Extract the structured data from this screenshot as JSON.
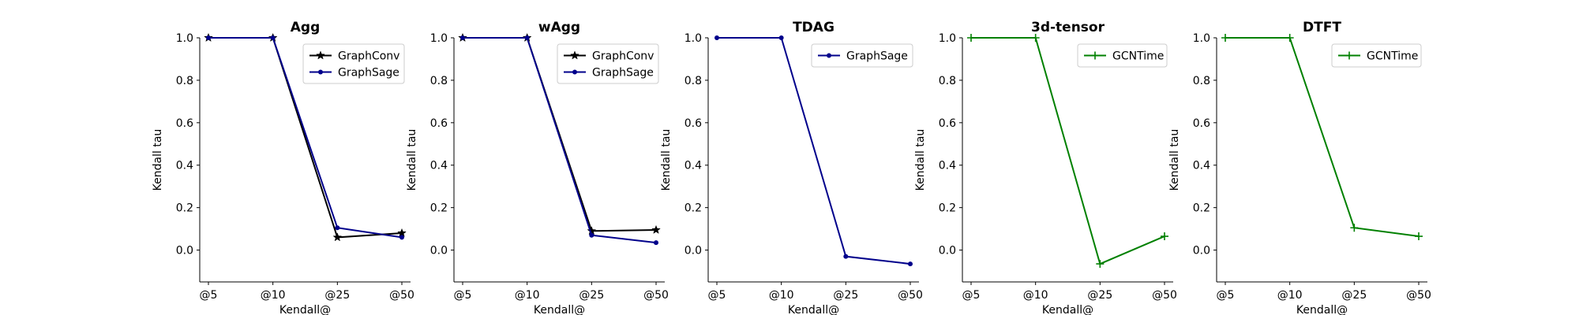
{
  "chart_data": [
    {
      "type": "line",
      "title": "Agg",
      "xlabel": "Kendall@",
      "ylabel": "Kendall tau",
      "categories": [
        "@5",
        "@10",
        "@25",
        "@50"
      ],
      "ylim": [
        -0.15,
        1.0
      ],
      "yticks": [
        "0.0",
        "0.2",
        "0.4",
        "0.6",
        "0.8",
        "1.0"
      ],
      "legend_position": "top-right",
      "grid": false,
      "series": [
        {
          "name": "GraphConv",
          "values": [
            1.0,
            1.0,
            0.06,
            0.08
          ],
          "color": "#000000",
          "marker": "star"
        },
        {
          "name": "GraphSage",
          "values": [
            1.0,
            1.0,
            0.105,
            0.06
          ],
          "color": "#00008b",
          "marker": "dot"
        }
      ]
    },
    {
      "type": "line",
      "title": "wAgg",
      "xlabel": "Kendall@",
      "ylabel": "Kendall tau",
      "categories": [
        "@5",
        "@10",
        "@25",
        "@50"
      ],
      "ylim": [
        -0.15,
        1.0
      ],
      "yticks": [
        "0.0",
        "0.2",
        "0.4",
        "0.6",
        "0.8",
        "1.0"
      ],
      "legend_position": "top-right",
      "grid": false,
      "series": [
        {
          "name": "GraphConv",
          "values": [
            1.0,
            1.0,
            0.09,
            0.095
          ],
          "color": "#000000",
          "marker": "star"
        },
        {
          "name": "GraphSage",
          "values": [
            1.0,
            1.0,
            0.07,
            0.035
          ],
          "color": "#00008b",
          "marker": "dot"
        }
      ]
    },
    {
      "type": "line",
      "title": "TDAG",
      "xlabel": "Kendall@",
      "ylabel": "Kendall tau",
      "categories": [
        "@5",
        "@10",
        "@25",
        "@50"
      ],
      "ylim": [
        -0.15,
        1.0
      ],
      "yticks": [
        "0.0",
        "0.2",
        "0.4",
        "0.6",
        "0.8",
        "1.0"
      ],
      "legend_position": "top-right",
      "grid": false,
      "series": [
        {
          "name": "GraphSage",
          "values": [
            1.0,
            1.0,
            -0.03,
            -0.065
          ],
          "color": "#00008b",
          "marker": "dot"
        }
      ]
    },
    {
      "type": "line",
      "title": "3d-tensor",
      "xlabel": "Kendall@",
      "ylabel": "Kendall tau",
      "categories": [
        "@5",
        "@10",
        "@25",
        "@50"
      ],
      "ylim": [
        -0.15,
        1.0
      ],
      "yticks": [
        "0.0",
        "0.2",
        "0.4",
        "0.6",
        "0.8",
        "1.0"
      ],
      "legend_position": "top-right",
      "grid": false,
      "series": [
        {
          "name": "GCNTime",
          "values": [
            1.0,
            1.0,
            -0.065,
            0.065
          ],
          "color": "#008000",
          "marker": "plus"
        }
      ]
    },
    {
      "type": "line",
      "title": "DTFT",
      "xlabel": "Kendall@",
      "ylabel": "Kendall tau",
      "categories": [
        "@5",
        "@10",
        "@25",
        "@50"
      ],
      "ylim": [
        -0.15,
        1.0
      ],
      "yticks": [
        "0.0",
        "0.2",
        "0.4",
        "0.6",
        "0.8",
        "1.0"
      ],
      "legend_position": "top-right",
      "grid": false,
      "series": [
        {
          "name": "GCNTime",
          "values": [
            1.0,
            1.0,
            0.105,
            0.065
          ],
          "color": "#008000",
          "marker": "plus"
        }
      ]
    }
  ]
}
